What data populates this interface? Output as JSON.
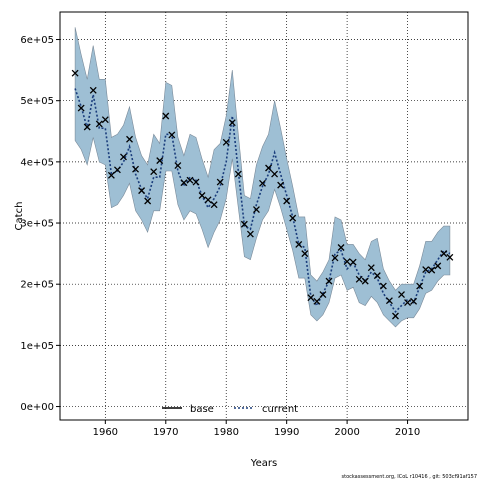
{
  "chart_data": {
    "type": "line",
    "title": "",
    "xlabel": "Years",
    "ylabel": "Catch",
    "xlim": [
      1952.5,
      2020.0
    ],
    "ylim": [
      -22000,
      645000
    ],
    "x_ticks": [
      1960,
      1970,
      1980,
      1990,
      2000,
      2010
    ],
    "x_tick_labels": [
      "1960",
      "1970",
      "1980",
      "1990",
      "2000",
      "2010"
    ],
    "y_ticks": [
      0,
      100000,
      200000,
      300000,
      400000,
      500000,
      600000
    ],
    "y_tick_labels": [
      "0e+00",
      "1e+05",
      "2e+05",
      "3e+05",
      "4e+05",
      "5e+05",
      "6e+05"
    ],
    "grid": true,
    "legend": {
      "placement": "bottom-center",
      "entries": [
        {
          "label": "base",
          "color": "#000000",
          "dash": "solid"
        },
        {
          "label": "current",
          "color": "#1f4e8c",
          "dash": "dotted"
        }
      ]
    },
    "band_color": "#9ebfd4",
    "band_edge_color": "#7a8a99",
    "current_line_color": "#1a3d7c",
    "marker_color": "#000000",
    "series": [
      {
        "name": "current",
        "x": [
          1955,
          1956,
          1957,
          1958,
          1959,
          1960,
          1961,
          1962,
          1963,
          1964,
          1965,
          1966,
          1967,
          1968,
          1969,
          1970,
          1971,
          1972,
          1973,
          1974,
          1975,
          1976,
          1977,
          1978,
          1979,
          1980,
          1981,
          1982,
          1983,
          1984,
          1985,
          1986,
          1987,
          1988,
          1989,
          1990,
          1991,
          1992,
          1993,
          1994,
          1995,
          1996,
          1997,
          1998,
          1999,
          2000,
          2001,
          2002,
          2003,
          2004,
          2005,
          2006,
          2007,
          2008,
          2009,
          2010,
          2011,
          2012,
          2013,
          2014,
          2015,
          2016,
          2017
        ],
        "y": [
          520000,
          490000,
          455000,
          510000,
          455000,
          455000,
          380000,
          385000,
          400000,
          425000,
          380000,
          355000,
          340000,
          375000,
          375000,
          445000,
          445000,
          385000,
          360000,
          375000,
          370000,
          345000,
          325000,
          340000,
          360000,
          400000,
          475000,
          385000,
          295000,
          290000,
          330000,
          360000,
          380000,
          415000,
          380000,
          345000,
          310000,
          265000,
          260000,
          180000,
          165000,
          185000,
          205000,
          250000,
          255000,
          225000,
          235000,
          215000,
          205000,
          220000,
          210000,
          185000,
          170000,
          155000,
          165000,
          175000,
          170000,
          195000,
          220000,
          225000,
          240000,
          255000,
          250000
        ],
        "lower": [
          435000,
          420000,
          395000,
          440000,
          400000,
          395000,
          325000,
          330000,
          345000,
          365000,
          320000,
          305000,
          285000,
          320000,
          320000,
          385000,
          385000,
          330000,
          305000,
          320000,
          315000,
          290000,
          260000,
          285000,
          305000,
          340000,
          405000,
          325000,
          245000,
          240000,
          275000,
          305000,
          320000,
          355000,
          325000,
          290000,
          255000,
          210000,
          210000,
          150000,
          140000,
          150000,
          170000,
          210000,
          215000,
          190000,
          195000,
          170000,
          165000,
          180000,
          170000,
          150000,
          140000,
          130000,
          140000,
          145000,
          145000,
          160000,
          185000,
          190000,
          205000,
          215000,
          215000
        ],
        "upper": [
          620000,
          575000,
          535000,
          590000,
          535000,
          535000,
          440000,
          445000,
          460000,
          490000,
          440000,
          410000,
          395000,
          445000,
          430000,
          530000,
          525000,
          440000,
          410000,
          445000,
          440000,
          405000,
          375000,
          420000,
          430000,
          475000,
          550000,
          445000,
          345000,
          340000,
          395000,
          425000,
          445000,
          500000,
          455000,
          405000,
          360000,
          310000,
          310000,
          215000,
          205000,
          220000,
          240000,
          310000,
          305000,
          265000,
          265000,
          250000,
          240000,
          270000,
          275000,
          225000,
          205000,
          190000,
          200000,
          200000,
          200000,
          230000,
          270000,
          270000,
          285000,
          295000,
          295000
        ]
      },
      {
        "name": "observed",
        "marker": "x",
        "x": [
          1955,
          1956,
          1957,
          1958,
          1959,
          1960,
          1961,
          1962,
          1963,
          1964,
          1965,
          1966,
          1967,
          1968,
          1969,
          1970,
          1971,
          1972,
          1973,
          1974,
          1975,
          1976,
          1977,
          1978,
          1979,
          1980,
          1981,
          1982,
          1983,
          1984,
          1985,
          1986,
          1987,
          1988,
          1989,
          1990,
          1991,
          1992,
          1993,
          1994,
          1995,
          1996,
          1997,
          1998,
          1999,
          2000,
          2001,
          2002,
          2003,
          2004,
          2005,
          2006,
          2007,
          2008,
          2009,
          2010,
          2011,
          2012,
          2013,
          2014,
          2015,
          2016,
          2017
        ],
        "y": [
          545000,
          488000,
          457000,
          517000,
          462000,
          469000,
          378000,
          387000,
          408000,
          437000,
          388000,
          353000,
          336000,
          384000,
          402000,
          475000,
          444000,
          394000,
          366000,
          370000,
          367000,
          345000,
          338000,
          330000,
          367000,
          432000,
          464000,
          380000,
          298000,
          282000,
          322000,
          365000,
          390000,
          380000,
          362000,
          336000,
          308000,
          265000,
          250000,
          178000,
          172000,
          183000,
          205000,
          243000,
          260000,
          237000,
          236000,
          208000,
          205000,
          227000,
          214000,
          197000,
          173000,
          148000,
          183000,
          170000,
          172000,
          197000,
          224000,
          223000,
          230000,
          250000,
          244000
        ]
      }
    ]
  },
  "footer": "stockassessment.org, ICoL r10416 , git: 503cf91af157"
}
